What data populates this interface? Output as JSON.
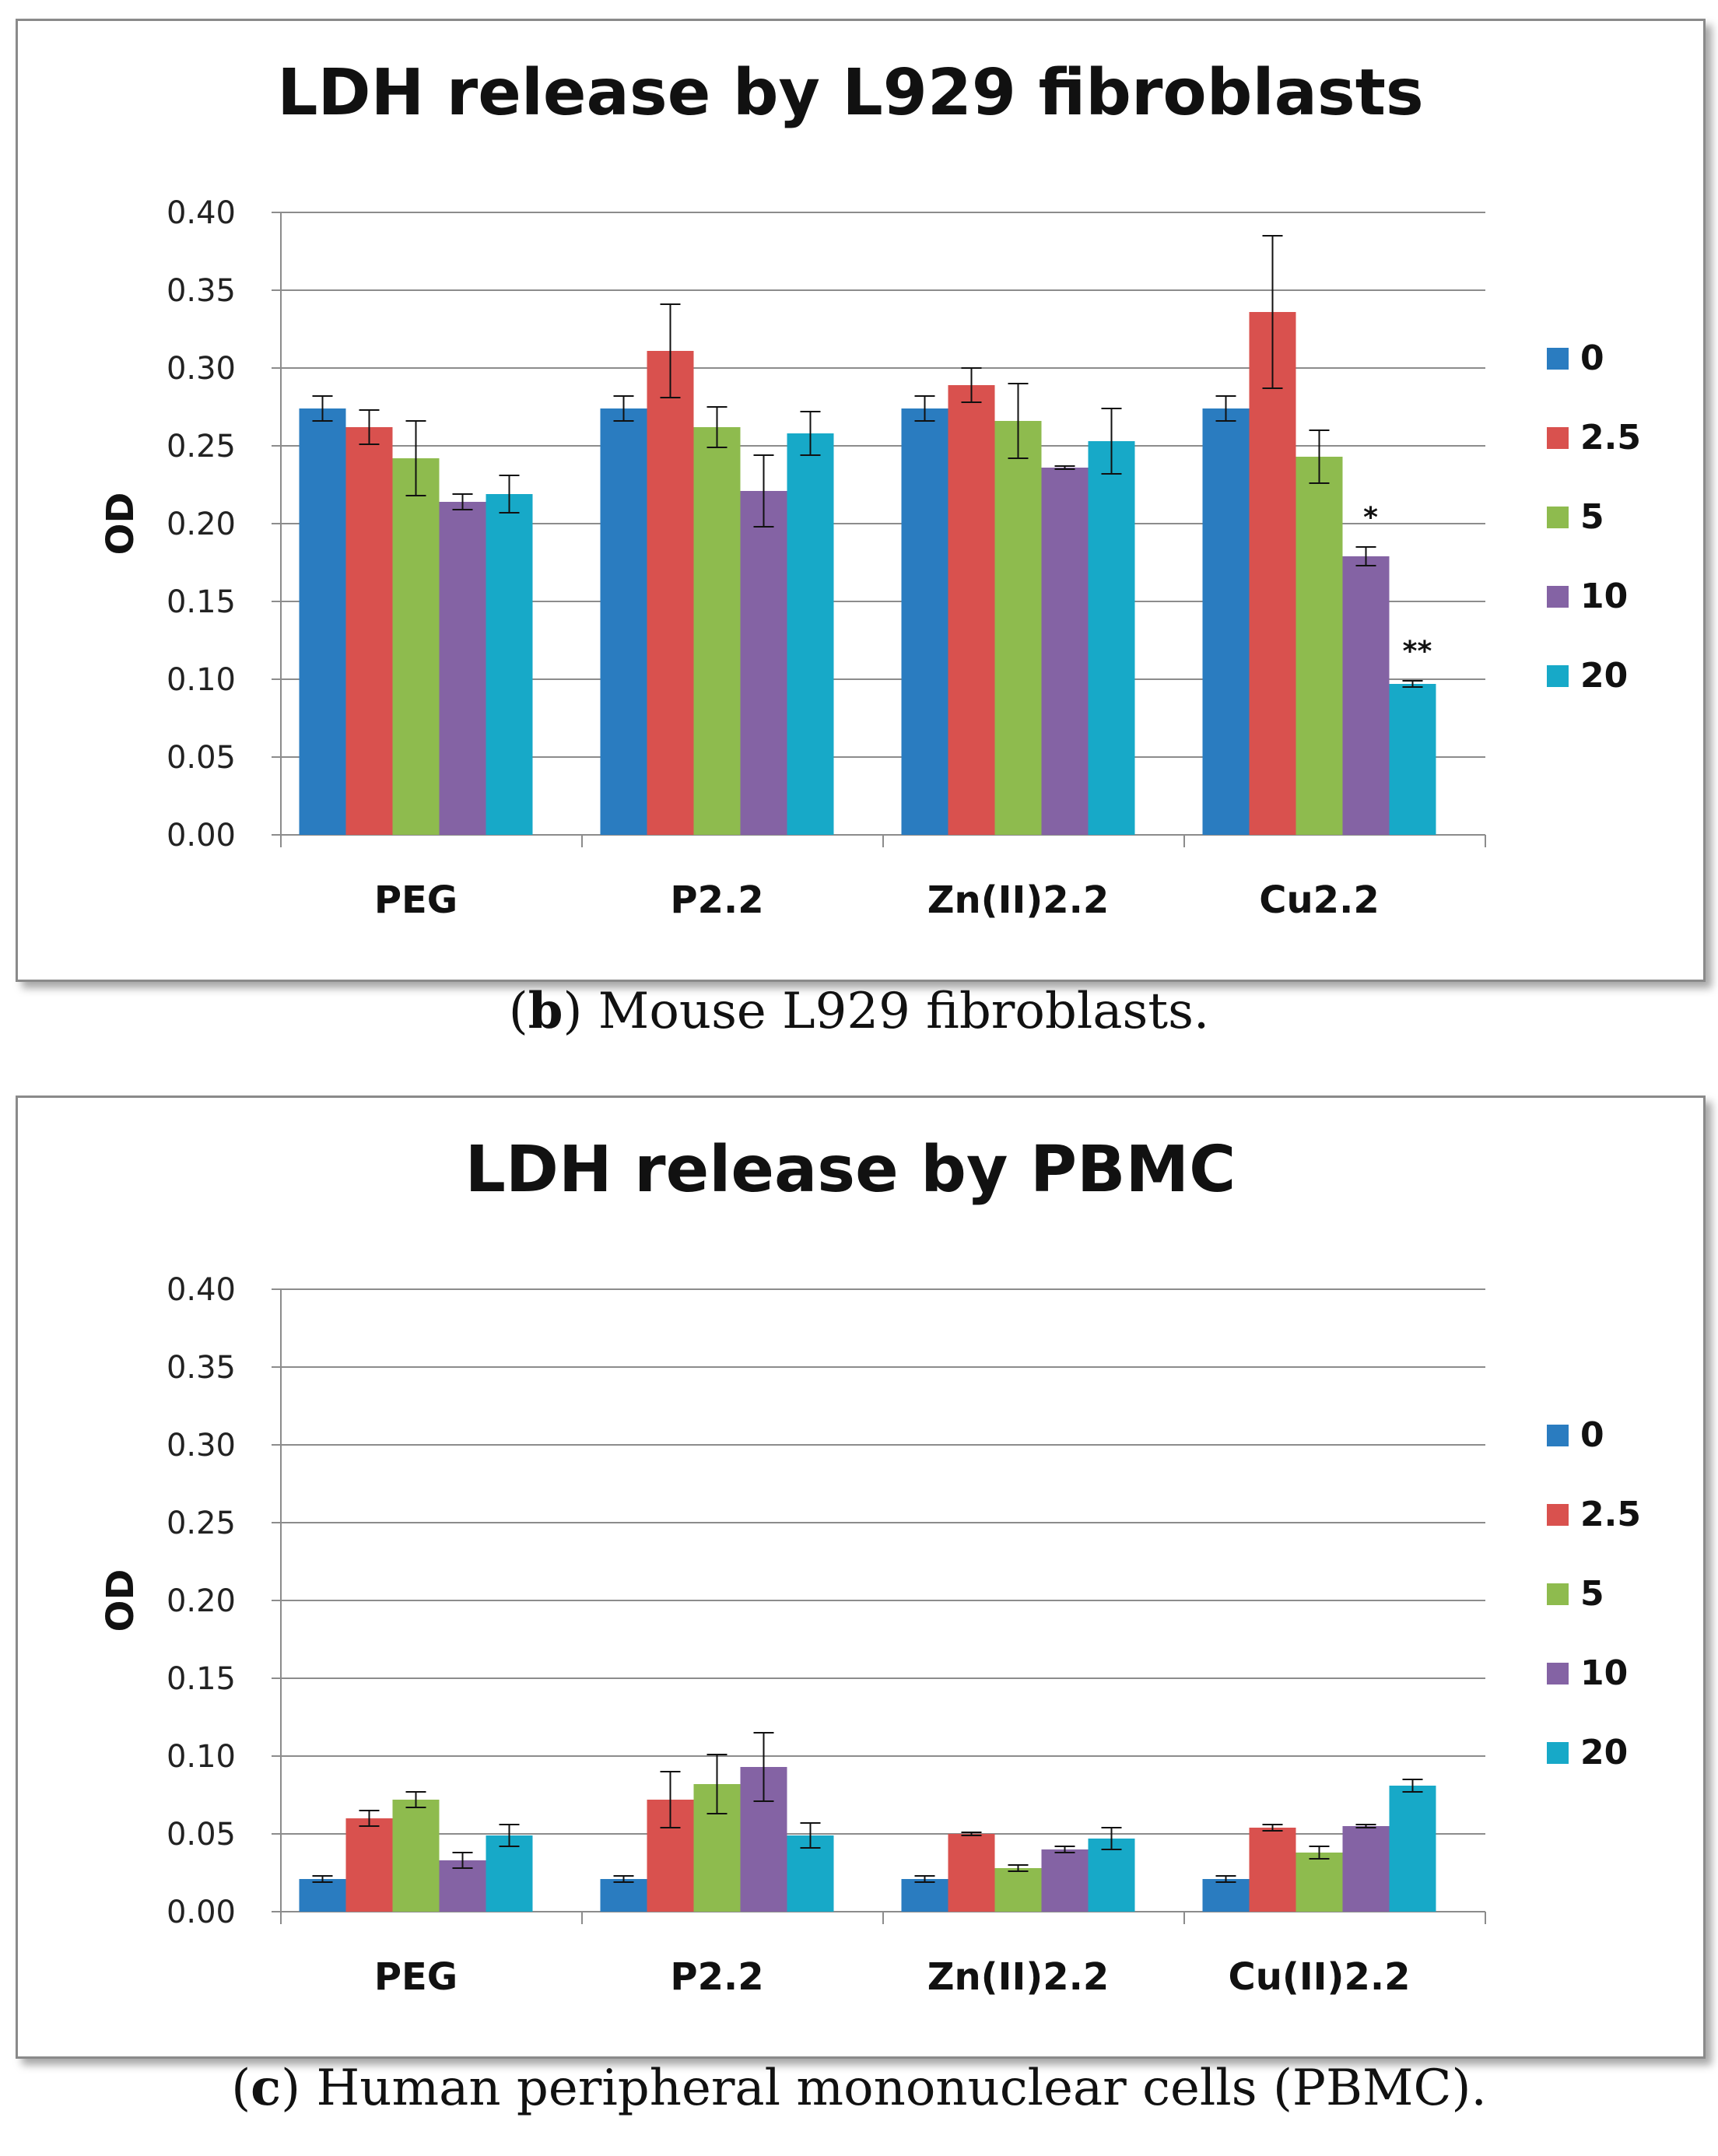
{
  "series_colors": [
    "#2a7cc0",
    "#d9514e",
    "#8ebb4e",
    "#8463a4",
    "#17a9c8"
  ],
  "chart_data": [
    {
      "type": "bar",
      "title": "LDH release by L929 fibroblasts",
      "xlabel": "",
      "ylabel": "OD",
      "ylim": [
        0,
        0.4
      ],
      "yticks": [
        "0.00",
        "0.05",
        "0.10",
        "0.15",
        "0.20",
        "0.25",
        "0.30",
        "0.35",
        "0.40"
      ],
      "categories": [
        "PEG",
        "P2.2",
        "Zn(II)2.2",
        "Cu2.2"
      ],
      "legend_position": "right",
      "series": [
        {
          "name": "0",
          "values": [
            0.274,
            0.274,
            0.274,
            0.274
          ],
          "errors": [
            0.008,
            0.008,
            0.008,
            0.008
          ]
        },
        {
          "name": "2.5",
          "values": [
            0.262,
            0.311,
            0.289,
            0.336
          ],
          "errors": [
            0.011,
            0.03,
            0.011,
            0.049
          ]
        },
        {
          "name": "5",
          "values": [
            0.242,
            0.262,
            0.266,
            0.243
          ],
          "errors": [
            0.024,
            0.013,
            0.024,
            0.017
          ]
        },
        {
          "name": "10",
          "values": [
            0.214,
            0.221,
            0.236,
            0.179
          ],
          "errors": [
            0.005,
            0.023,
            0.001,
            0.006
          ]
        },
        {
          "name": "20",
          "values": [
            0.219,
            0.258,
            0.253,
            0.097
          ],
          "errors": [
            0.012,
            0.014,
            0.021,
            0.002
          ]
        }
      ],
      "annotations": [
        {
          "text": "*",
          "category": 3,
          "series": 3
        },
        {
          "text": "**",
          "category": 3,
          "series": 4
        }
      ]
    },
    {
      "type": "bar",
      "title": "LDH release by PBMC",
      "xlabel": "",
      "ylabel": "OD",
      "ylim": [
        0,
        0.4
      ],
      "yticks": [
        "0.00",
        "0.05",
        "0.10",
        "0.15",
        "0.20",
        "0.25",
        "0.30",
        "0.35",
        "0.40"
      ],
      "categories": [
        "PEG",
        "P2.2",
        "Zn(II)2.2",
        "Cu(II)2.2"
      ],
      "legend_position": "right",
      "series": [
        {
          "name": "0",
          "values": [
            0.021,
            0.021,
            0.021,
            0.021
          ],
          "errors": [
            0.002,
            0.002,
            0.002,
            0.002
          ]
        },
        {
          "name": "2.5",
          "values": [
            0.06,
            0.072,
            0.05,
            0.054
          ],
          "errors": [
            0.005,
            0.018,
            0.001,
            0.002
          ]
        },
        {
          "name": "5",
          "values": [
            0.072,
            0.082,
            0.028,
            0.038
          ],
          "errors": [
            0.005,
            0.019,
            0.002,
            0.004
          ]
        },
        {
          "name": "10",
          "values": [
            0.033,
            0.093,
            0.04,
            0.055
          ],
          "errors": [
            0.005,
            0.022,
            0.002,
            0.001
          ]
        },
        {
          "name": "20",
          "values": [
            0.049,
            0.049,
            0.047,
            0.081
          ],
          "errors": [
            0.007,
            0.008,
            0.007,
            0.004
          ]
        }
      ],
      "annotations": []
    }
  ],
  "captions": [
    {
      "letter": "b",
      "text": ") Mouse L929 fibroblasts.",
      "prefix": "("
    },
    {
      "letter": "c",
      "text": ") Human peripheral mononuclear cells (PBMC).",
      "prefix": "("
    }
  ]
}
